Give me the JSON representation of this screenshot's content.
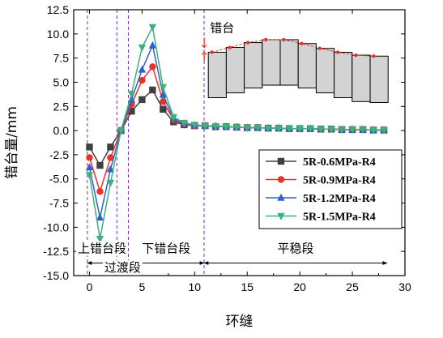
{
  "chart_data": {
    "type": "line",
    "xlabel": "环缝",
    "ylabel": "错台量/mm",
    "xlim": [
      -1.5,
      30
    ],
    "ylim": [
      -15,
      12.5
    ],
    "xticks": [
      0,
      5,
      10,
      15,
      20,
      25,
      30
    ],
    "yticks": [
      -15.0,
      -12.5,
      -10.0,
      -7.5,
      -5.0,
      -2.5,
      0.0,
      2.5,
      5.0,
      7.5,
      10.0,
      12.5
    ],
    "grid": false,
    "legend_position": "bottom-right",
    "x": [
      0,
      1,
      2,
      3,
      4,
      5,
      6,
      7,
      8,
      9,
      10,
      11,
      12,
      13,
      14,
      15,
      16,
      17,
      18,
      19,
      20,
      21,
      22,
      23,
      24,
      25,
      26,
      27,
      28
    ],
    "series": [
      {
        "name": "5R-0.6MPa-R4",
        "color": "#404040",
        "marker": "square",
        "values": [
          -1.7,
          -3.6,
          -1.7,
          0.0,
          2.0,
          3.2,
          4.2,
          2.2,
          0.9,
          0.6,
          0.5,
          0.5,
          0.4,
          0.4,
          0.35,
          0.3,
          0.3,
          0.25,
          0.25,
          0.2,
          0.2,
          0.2,
          0.15,
          0.15,
          0.1,
          0.1,
          0.1,
          0.05,
          0.05
        ]
      },
      {
        "name": "5R-0.9MPa-R4",
        "color": "#e8322c",
        "marker": "circle",
        "values": [
          -2.8,
          -6.3,
          -2.8,
          0.0,
          2.7,
          5.2,
          6.6,
          3.0,
          1.1,
          0.7,
          0.5,
          0.5,
          0.45,
          0.4,
          0.35,
          0.3,
          0.3,
          0.25,
          0.25,
          0.2,
          0.2,
          0.2,
          0.15,
          0.15,
          0.1,
          0.1,
          0.1,
          0.05,
          0.05
        ]
      },
      {
        "name": "5R-1.2MPa-R4",
        "color": "#2f62c9",
        "marker": "triangle-up",
        "values": [
          -3.8,
          -9.0,
          -4.0,
          0.0,
          3.2,
          6.3,
          8.8,
          3.7,
          1.2,
          0.75,
          0.55,
          0.5,
          0.45,
          0.4,
          0.35,
          0.3,
          0.3,
          0.25,
          0.25,
          0.2,
          0.2,
          0.2,
          0.15,
          0.15,
          0.1,
          0.1,
          0.1,
          0.05,
          0.05
        ]
      },
      {
        "name": "5R-1.5MPa-R4",
        "color": "#3fb07c",
        "marker": "triangle-down",
        "values": [
          -4.6,
          -11.2,
          -5.4,
          0.0,
          3.8,
          8.6,
          10.7,
          4.5,
          1.4,
          0.8,
          0.6,
          0.5,
          0.45,
          0.4,
          0.35,
          0.3,
          0.3,
          0.25,
          0.25,
          0.2,
          0.2,
          0.2,
          0.15,
          0.15,
          0.1,
          0.1,
          0.1,
          0.05,
          0.05
        ]
      }
    ],
    "region_dividers_x": [
      -0.2,
      2.6,
      3.7,
      10.9
    ],
    "regions": [
      {
        "label": "上错台段",
        "from": -0.2,
        "to": 2.6
      },
      {
        "label": "过渡段",
        "from": 2.6,
        "to": 3.7
      },
      {
        "label": "下错台段",
        "from": 3.7,
        "to": 10.9
      },
      {
        "label": "平稳段",
        "from": 10.9,
        "to": 28.3
      }
    ],
    "inset": {
      "label": "错台",
      "top_dashed_values": [
        8.1,
        8.6,
        9.1,
        9.4,
        9.4,
        9.0,
        8.5,
        8.1,
        7.8,
        7.7
      ],
      "bottom_values": [
        3.4,
        3.9,
        4.4,
        4.7,
        4.7,
        4.4,
        3.9,
        3.4,
        3.0,
        2.9
      ]
    }
  }
}
